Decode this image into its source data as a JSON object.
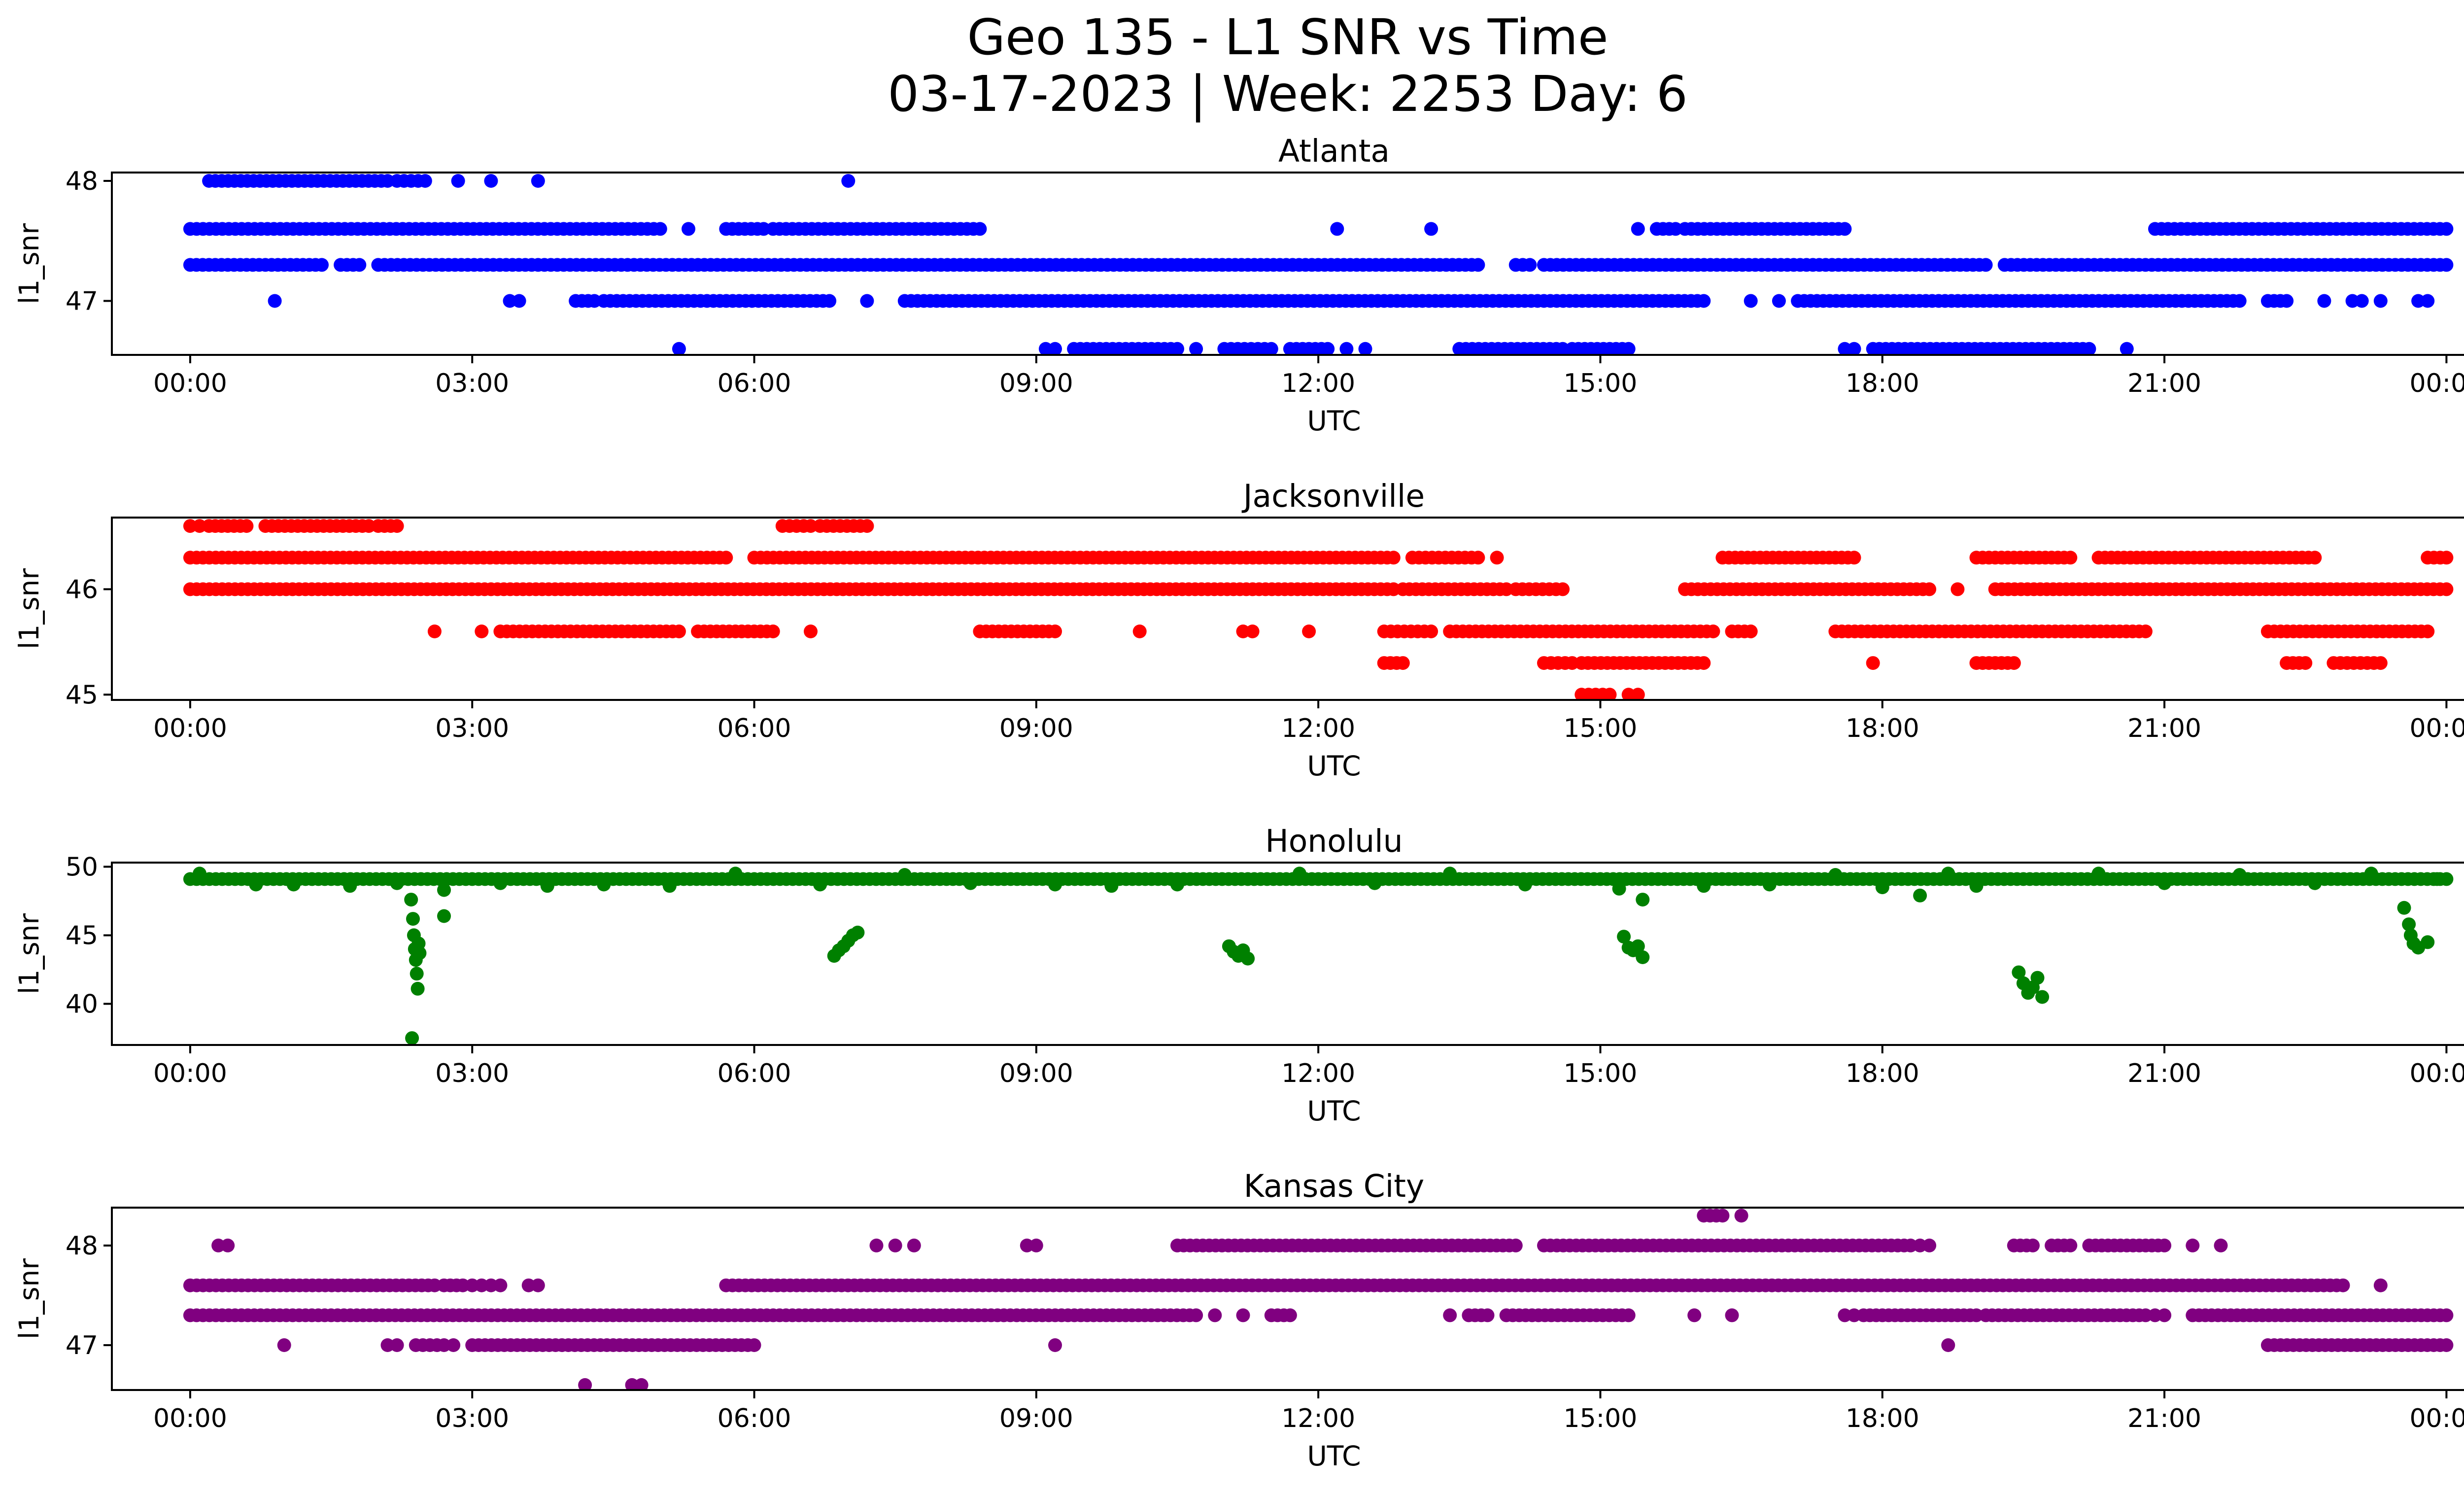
{
  "figure": {
    "title_line1": "Geo 135 - L1 SNR vs Time",
    "title_line2": "03-17-2023 | Week: 2253 Day: 6"
  },
  "chart_data": [
    {
      "type": "scatter",
      "title": "Atlanta",
      "xlabel": "UTC",
      "ylabel": "l1_snr",
      "color": "#0000ff",
      "xlim": [
        "23:50",
        "25:10"
      ],
      "x_ticks": [
        "00:00",
        "03:00",
        "06:00",
        "09:00",
        "12:00",
        "15:00",
        "18:00",
        "21:00",
        "00:00"
      ],
      "x_tick_hours": [
        0,
        3,
        6,
        9,
        12,
        15,
        18,
        21,
        24
      ],
      "ylim": [
        46.55,
        48.07
      ],
      "y_ticks": [
        47,
        48
      ],
      "levels": [
        {
          "y": 48.0,
          "ranges": [
            [
              0.2,
              2.1
            ],
            [
              2.2,
              2.5
            ],
            [
              2.85,
              2.85
            ],
            [
              3.2,
              3.2
            ],
            [
              3.7,
              3.7
            ],
            [
              7.0,
              7.0
            ]
          ]
        },
        {
          "y": 47.6,
          "ranges": [
            [
              0.0,
              5.0
            ],
            [
              5.3,
              5.3
            ],
            [
              5.7,
              6.1
            ],
            [
              6.2,
              8.4
            ],
            [
              12.2,
              12.2
            ],
            [
              13.2,
              13.2
            ],
            [
              15.4,
              15.4
            ],
            [
              15.6,
              15.8
            ],
            [
              15.9,
              17.6
            ],
            [
              20.9,
              24.0
            ]
          ]
        },
        {
          "y": 47.3,
          "ranges": [
            [
              0.0,
              1.4
            ],
            [
              1.6,
              1.8
            ],
            [
              2.0,
              13.7
            ],
            [
              14.1,
              14.25
            ],
            [
              14.4,
              19.1
            ],
            [
              19.3,
              24.0
            ]
          ]
        },
        {
          "y": 47.0,
          "ranges": [
            [
              0.9,
              0.9
            ],
            [
              3.4,
              3.5
            ],
            [
              4.1,
              4.3
            ],
            [
              4.4,
              6.8
            ],
            [
              7.2,
              7.2
            ],
            [
              7.6,
              16.1
            ],
            [
              16.6,
              16.6
            ],
            [
              16.9,
              16.9
            ],
            [
              17.1,
              21.8
            ],
            [
              22.1,
              22.3
            ],
            [
              22.7,
              22.7
            ],
            [
              23.0,
              23.1
            ],
            [
              23.3,
              23.3
            ],
            [
              23.7,
              23.8
            ]
          ]
        },
        {
          "y": 46.6,
          "ranges": [
            [
              5.2,
              5.2
            ],
            [
              9.1,
              9.2
            ],
            [
              9.4,
              10.5
            ],
            [
              10.7,
              10.7
            ],
            [
              11.0,
              11.5
            ],
            [
              11.7,
              12.1
            ],
            [
              12.3,
              12.3
            ],
            [
              12.5,
              12.5
            ],
            [
              13.5,
              14.6
            ],
            [
              14.7,
              15.3
            ],
            [
              17.6,
              17.7
            ],
            [
              17.9,
              20.2
            ],
            [
              20.6,
              20.6
            ]
          ]
        }
      ]
    },
    {
      "type": "scatter",
      "title": "Jacksonville",
      "xlabel": "UTC",
      "ylabel": "l1_snr",
      "color": "#ff0000",
      "xlim": [
        "23:50",
        "25:10"
      ],
      "x_ticks": [
        "00:00",
        "03:00",
        "06:00",
        "09:00",
        "12:00",
        "15:00",
        "18:00",
        "21:00",
        "00:00"
      ],
      "x_tick_hours": [
        0,
        3,
        6,
        9,
        12,
        15,
        18,
        21,
        24
      ],
      "ylim": [
        44.95,
        46.68
      ],
      "y_ticks": [
        45,
        46
      ],
      "levels": [
        {
          "y": 46.6,
          "ranges": [
            [
              0.0,
              0.1
            ],
            [
              0.2,
              0.6
            ],
            [
              0.8,
              1.9
            ],
            [
              2.0,
              2.2
            ],
            [
              6.3,
              6.6
            ],
            [
              6.7,
              7.2
            ]
          ]
        },
        {
          "y": 46.3,
          "ranges": [
            [
              0.0,
              5.7
            ],
            [
              6.0,
              12.8
            ],
            [
              13.0,
              13.7
            ],
            [
              13.9,
              13.9
            ],
            [
              16.3,
              17.7
            ],
            [
              19.0,
              20.0
            ],
            [
              20.3,
              22.6
            ],
            [
              23.8,
              24.0
            ]
          ]
        },
        {
          "y": 46.0,
          "ranges": [
            [
              0.0,
              12.8
            ],
            [
              12.9,
              14.0
            ],
            [
              14.1,
              14.6
            ],
            [
              15.9,
              18.5
            ],
            [
              18.8,
              18.8
            ],
            [
              19.2,
              24.0
            ]
          ]
        },
        {
          "y": 45.6,
          "ranges": [
            [
              2.6,
              2.6
            ],
            [
              3.1,
              3.1
            ],
            [
              3.3,
              5.2
            ],
            [
              5.4,
              6.2
            ],
            [
              6.6,
              6.6
            ],
            [
              8.4,
              9.2
            ],
            [
              10.1,
              10.1
            ],
            [
              11.2,
              11.3
            ],
            [
              11.9,
              11.9
            ],
            [
              12.7,
              13.2
            ],
            [
              13.4,
              16.2
            ],
            [
              16.4,
              16.6
            ],
            [
              17.5,
              20.8
            ],
            [
              22.1,
              23.8
            ]
          ]
        },
        {
          "y": 45.3,
          "ranges": [
            [
              12.7,
              12.9
            ],
            [
              14.4,
              14.7
            ],
            [
              14.8,
              16.1
            ],
            [
              17.9,
              17.9
            ],
            [
              19.0,
              19.4
            ],
            [
              22.3,
              22.5
            ],
            [
              22.8,
              23.3
            ]
          ]
        },
        {
          "y": 45.0,
          "ranges": [
            [
              14.8,
              15.1
            ],
            [
              15.3,
              15.4
            ]
          ]
        }
      ]
    },
    {
      "type": "scatter",
      "title": "Honolulu",
      "xlabel": "UTC",
      "ylabel": "l1_snr",
      "color": "#008000",
      "xlim": [
        "23:50",
        "25:10"
      ],
      "x_ticks": [
        "00:00",
        "03:00",
        "06:00",
        "09:00",
        "12:00",
        "15:00",
        "18:00",
        "21:00",
        "00:00"
      ],
      "x_tick_hours": [
        0,
        3,
        6,
        9,
        12,
        15,
        18,
        21,
        24
      ],
      "ylim": [
        37.0,
        50.3
      ],
      "y_ticks": [
        40,
        45,
        50
      ],
      "baseline": {
        "y": 49.1,
        "x_range": [
          0.0,
          24.0
        ]
      },
      "points": [
        {
          "x": 0.1,
          "y": 49.5
        },
        {
          "x": 0.7,
          "y": 48.7
        },
        {
          "x": 1.1,
          "y": 48.7
        },
        {
          "x": 1.7,
          "y": 48.6
        },
        {
          "x": 2.2,
          "y": 48.8
        },
        {
          "x": 2.35,
          "y": 47.6
        },
        {
          "x": 2.37,
          "y": 46.2
        },
        {
          "x": 2.38,
          "y": 45.0
        },
        {
          "x": 2.39,
          "y": 44.0
        },
        {
          "x": 2.4,
          "y": 43.2
        },
        {
          "x": 2.41,
          "y": 42.2
        },
        {
          "x": 2.42,
          "y": 41.1
        },
        {
          "x": 2.43,
          "y": 44.4
        },
        {
          "x": 2.44,
          "y": 43.7
        },
        {
          "x": 2.36,
          "y": 37.5
        },
        {
          "x": 2.7,
          "y": 48.3
        },
        {
          "x": 2.7,
          "y": 46.4
        },
        {
          "x": 3.3,
          "y": 48.8
        },
        {
          "x": 3.8,
          "y": 48.6
        },
        {
          "x": 4.4,
          "y": 48.7
        },
        {
          "x": 5.1,
          "y": 48.6
        },
        {
          "x": 5.8,
          "y": 49.5
        },
        {
          "x": 6.7,
          "y": 48.7
        },
        {
          "x": 6.85,
          "y": 43.5
        },
        {
          "x": 6.9,
          "y": 43.9
        },
        {
          "x": 6.95,
          "y": 44.2
        },
        {
          "x": 7.0,
          "y": 44.6
        },
        {
          "x": 7.05,
          "y": 45.0
        },
        {
          "x": 7.1,
          "y": 45.2
        },
        {
          "x": 7.6,
          "y": 49.4
        },
        {
          "x": 8.3,
          "y": 48.8
        },
        {
          "x": 9.2,
          "y": 48.7
        },
        {
          "x": 9.8,
          "y": 48.6
        },
        {
          "x": 10.5,
          "y": 48.7
        },
        {
          "x": 11.05,
          "y": 44.2
        },
        {
          "x": 11.1,
          "y": 43.8
        },
        {
          "x": 11.15,
          "y": 43.5
        },
        {
          "x": 11.2,
          "y": 43.9
        },
        {
          "x": 11.25,
          "y": 43.3
        },
        {
          "x": 11.8,
          "y": 49.5
        },
        {
          "x": 12.6,
          "y": 48.8
        },
        {
          "x": 13.4,
          "y": 49.5
        },
        {
          "x": 14.2,
          "y": 48.7
        },
        {
          "x": 15.2,
          "y": 48.4
        },
        {
          "x": 15.25,
          "y": 44.9
        },
        {
          "x": 15.3,
          "y": 44.1
        },
        {
          "x": 15.35,
          "y": 43.9
        },
        {
          "x": 15.4,
          "y": 44.2
        },
        {
          "x": 15.45,
          "y": 43.4
        },
        {
          "x": 15.45,
          "y": 47.6
        },
        {
          "x": 16.1,
          "y": 48.6
        },
        {
          "x": 16.8,
          "y": 48.7
        },
        {
          "x": 17.5,
          "y": 49.4
        },
        {
          "x": 18.0,
          "y": 48.5
        },
        {
          "x": 18.4,
          "y": 47.9
        },
        {
          "x": 18.7,
          "y": 49.5
        },
        {
          "x": 19.0,
          "y": 48.6
        },
        {
          "x": 19.45,
          "y": 42.3
        },
        {
          "x": 19.5,
          "y": 41.5
        },
        {
          "x": 19.55,
          "y": 40.8
        },
        {
          "x": 19.6,
          "y": 41.2
        },
        {
          "x": 19.65,
          "y": 41.9
        },
        {
          "x": 19.7,
          "y": 40.5
        },
        {
          "x": 20.3,
          "y": 49.5
        },
        {
          "x": 21.0,
          "y": 48.8
        },
        {
          "x": 21.8,
          "y": 49.4
        },
        {
          "x": 22.6,
          "y": 48.8
        },
        {
          "x": 23.2,
          "y": 49.5
        },
        {
          "x": 23.55,
          "y": 47.0
        },
        {
          "x": 23.6,
          "y": 45.8
        },
        {
          "x": 23.62,
          "y": 45.0
        },
        {
          "x": 23.65,
          "y": 44.4
        },
        {
          "x": 23.7,
          "y": 44.1
        },
        {
          "x": 23.8,
          "y": 44.5
        },
        {
          "x": 23.9,
          "y": 49.1
        }
      ]
    },
    {
      "type": "scatter",
      "title": "Kansas City",
      "xlabel": "UTC",
      "ylabel": "l1_snr",
      "color": "#800080",
      "xlim": [
        "23:50",
        "25:10"
      ],
      "x_ticks": [
        "00:00",
        "03:00",
        "06:00",
        "09:00",
        "12:00",
        "15:00",
        "18:00",
        "21:00",
        "00:00"
      ],
      "x_tick_hours": [
        0,
        3,
        6,
        9,
        12,
        15,
        18,
        21,
        24
      ],
      "ylim": [
        46.55,
        48.38
      ],
      "y_ticks": [
        47,
        48
      ],
      "levels": [
        {
          "y": 48.3,
          "ranges": [
            [
              16.1,
              16.3
            ],
            [
              16.5,
              16.5
            ]
          ]
        },
        {
          "y": 48.0,
          "ranges": [
            [
              0.3,
              0.4
            ],
            [
              7.3,
              7.3
            ],
            [
              7.5,
              7.5
            ],
            [
              7.7,
              7.7
            ],
            [
              8.9,
              9.0
            ],
            [
              10.5,
              14.1
            ],
            [
              14.4,
              18.3
            ],
            [
              18.4,
              18.5
            ],
            [
              19.4,
              19.6
            ],
            [
              19.8,
              20.0
            ],
            [
              20.2,
              21.0
            ],
            [
              21.3,
              21.3
            ],
            [
              21.6,
              21.6
            ]
          ]
        },
        {
          "y": 47.6,
          "ranges": [
            [
              0.0,
              2.6
            ],
            [
              2.7,
              2.9
            ],
            [
              3.0,
              3.1
            ],
            [
              3.2,
              3.3
            ],
            [
              3.6,
              3.7
            ],
            [
              5.7,
              22.9
            ],
            [
              23.3,
              23.3
            ]
          ]
        },
        {
          "y": 47.3,
          "ranges": [
            [
              0.0,
              10.7
            ],
            [
              10.9,
              10.9
            ],
            [
              11.2,
              11.2
            ],
            [
              11.5,
              11.7
            ],
            [
              13.4,
              13.4
            ],
            [
              13.6,
              13.8
            ],
            [
              14.0,
              15.3
            ],
            [
              16.0,
              16.0
            ],
            [
              16.4,
              16.4
            ],
            [
              17.6,
              17.7
            ],
            [
              17.8,
              19.0
            ],
            [
              19.1,
              20.8
            ],
            [
              20.9,
              21.0
            ],
            [
              21.3,
              24.0
            ]
          ]
        },
        {
          "y": 47.0,
          "ranges": [
            [
              1.0,
              1.0
            ],
            [
              2.1,
              2.2
            ],
            [
              2.4,
              2.7
            ],
            [
              2.8,
              2.8
            ],
            [
              3.0,
              6.0
            ],
            [
              9.2,
              9.2
            ],
            [
              18.7,
              18.7
            ],
            [
              22.1,
              24.0
            ]
          ]
        },
        {
          "y": 46.6,
          "ranges": [
            [
              4.2,
              4.2
            ],
            [
              4.7,
              4.8
            ]
          ]
        }
      ]
    }
  ]
}
